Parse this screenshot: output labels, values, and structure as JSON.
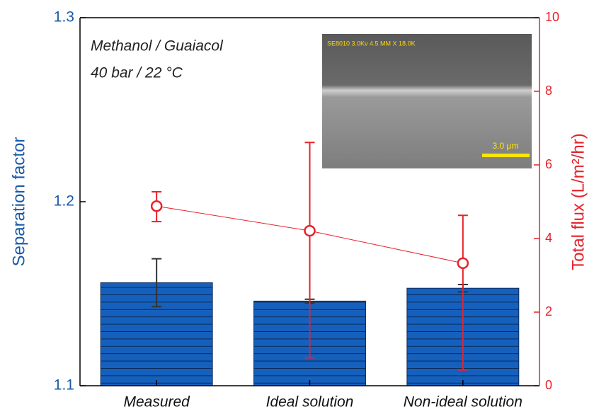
{
  "chart_data": {
    "type": "bar",
    "categories": [
      "Measured",
      "Ideal solution",
      "Non-ideal solution"
    ],
    "ylabel": "Separation factor",
    "y2label": "Total flux (L/m²/hr)",
    "ylim": [
      1.1,
      1.3
    ],
    "yticks": [
      1.1,
      1.2,
      1.3
    ],
    "y2lim": [
      0,
      10
    ],
    "y2ticks": [
      0,
      2,
      4,
      6,
      8,
      10
    ],
    "ycolor": "#1a5aa6",
    "y2color": "#e8212b",
    "series": [
      {
        "type": "bar",
        "color": "#1560bd",
        "values": [
          1.156,
          1.146,
          1.153
        ],
        "errors": [
          0.013,
          0.001,
          0.002
        ]
      },
      {
        "type": "line",
        "axis": "y2",
        "color": "#e8212b",
        "values": [
          4.88,
          4.21,
          3.33
        ],
        "error_minus": [
          0.42,
          3.45,
          2.9
        ],
        "error_plus": [
          0.39,
          2.4,
          1.3
        ]
      }
    ],
    "annotations": [
      "Methanol / Guaiacol",
      "40 bar / 22 °C"
    ],
    "inset": {
      "header": "SE8010 3.0Kv 4.5 MM X 18.0K",
      "scale_bar": "3.0 μm"
    }
  }
}
